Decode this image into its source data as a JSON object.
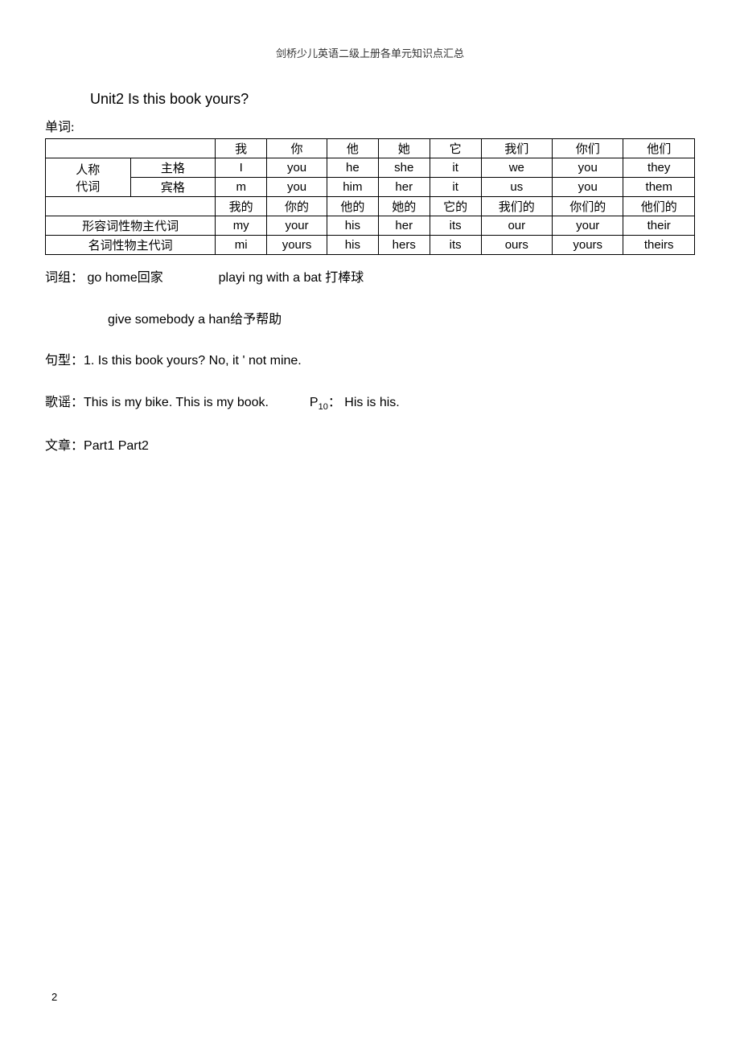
{
  "header": "剑桥少儿英语二级上册各单元知识点汇总",
  "unit_title": "Unit2 Is this book yours?",
  "labels": {
    "danci": "单词:",
    "cizu": "词组：",
    "juxing": "句型：",
    "geyao": "歌谣：",
    "wenzhang": "文章："
  },
  "table": {
    "border_color": "#000000",
    "font_size": 15,
    "header_row": [
      "",
      "我",
      "你",
      "他",
      "她",
      "它",
      "我们",
      "你们",
      "他们"
    ],
    "rows": [
      {
        "left_span": "人称代词",
        "left2": "主格",
        "cells": [
          "I",
          "you",
          "he",
          "she",
          "it",
          "we",
          "you",
          "they"
        ]
      },
      {
        "left_span": "",
        "left2": "宾格",
        "cells": [
          "m",
          "you",
          "him",
          "her",
          "it",
          "us",
          "you",
          "them"
        ]
      },
      {
        "full_left": "",
        "cells": [
          "我的",
          "你的",
          "他的",
          "她的",
          "它的",
          "我们的",
          "你们的",
          "他们的"
        ]
      },
      {
        "full_left": "形容词性物主代词",
        "cells": [
          "my",
          "your",
          "his",
          "her",
          "its",
          "our",
          "your",
          "their"
        ]
      },
      {
        "full_left": "名词性物主代词",
        "cells": [
          "mi",
          "yours",
          "his",
          "hers",
          "its",
          "ours",
          "yours",
          "theirs"
        ]
      }
    ],
    "col_widths": [
      "10%",
      "10%",
      "8%",
      "9%",
      "9%",
      "9%",
      "9%",
      "9%",
      "9%",
      "9%",
      "9%"
    ]
  },
  "phrases": {
    "p1_en": "go home",
    "p1_cn": "回家",
    "p2_en": "playi ng with a bat",
    "p2_cn": "打棒球",
    "p3_en": "give somebody a han",
    "p3_cn": "给予帮助"
  },
  "sentence": "1. Is this book yours? No, it ' not mine.",
  "song_line": {
    "part1": "This is my bike. This is my book.",
    "part2_label": "P",
    "part2_sub": "10",
    "part2_colon": "：",
    "part2_text": "His is his."
  },
  "article": "Part1 Part2",
  "page_number": "2",
  "colors": {
    "text": "#000000",
    "bg": "#ffffff"
  }
}
